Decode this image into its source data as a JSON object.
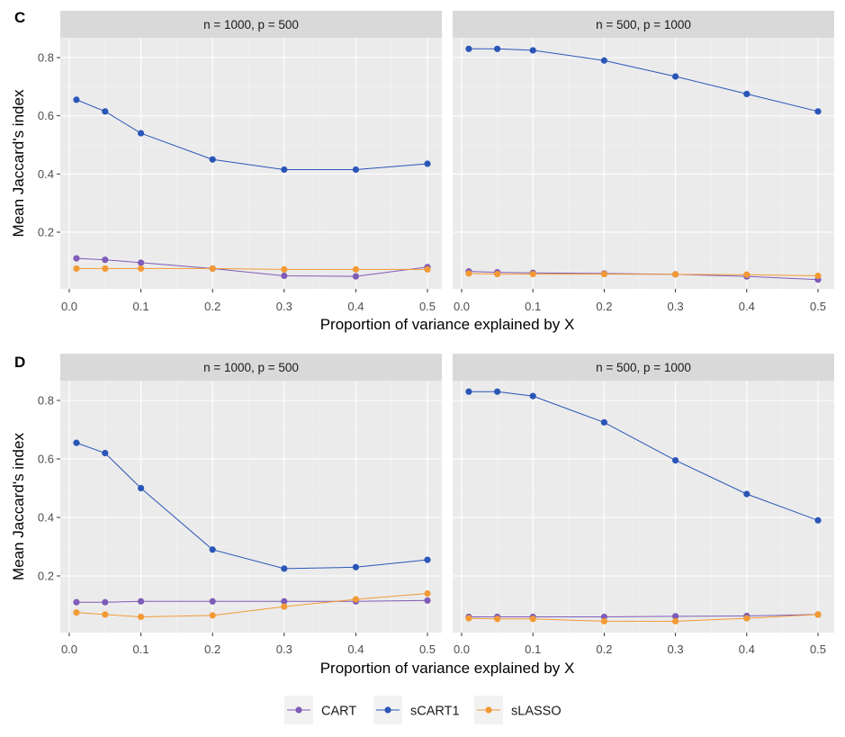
{
  "colors": {
    "CART": "#7e5cb8",
    "sCART1": "#2a56b8",
    "sLASSO": "#f39a35",
    "panel_bg": "#ebebeb",
    "strip_bg": "#d9d9d9",
    "grid_major": "#ffffff",
    "grid_minor": "#f4f4f4"
  },
  "legend": {
    "items": [
      "CART",
      "sCART1",
      "sLASSO"
    ]
  },
  "chart_data": [
    {
      "type": "line",
      "tag": "C",
      "ylabel": "Mean Jaccard's index",
      "xlabel": "Proportion of variance explained by X",
      "xlim": [
        0,
        0.5
      ],
      "ylim": [
        0,
        0.85
      ],
      "x_ticks": [
        "0.0",
        "0.1",
        "0.2",
        "0.3",
        "0.4",
        "0.5"
      ],
      "y_ticks": [
        "0.2",
        "0.4",
        "0.6",
        "0.8"
      ],
      "facets": [
        {
          "strip": "n = 1000, p = 500",
          "x": [
            0.01,
            0.05,
            0.1,
            0.2,
            0.3,
            0.4,
            0.5
          ],
          "series": [
            {
              "name": "CART",
              "values": [
                0.11,
                0.105,
                0.095,
                0.075,
                0.05,
                0.048,
                0.08
              ]
            },
            {
              "name": "sCART1",
              "values": [
                0.655,
                0.615,
                0.54,
                0.45,
                0.415,
                0.415,
                0.435
              ]
            },
            {
              "name": "sLASSO",
              "values": [
                0.075,
                0.075,
                0.075,
                0.075,
                0.072,
                0.072,
                0.072
              ]
            }
          ]
        },
        {
          "strip": "n = 500, p = 1000",
          "x": [
            0.01,
            0.05,
            0.1,
            0.2,
            0.3,
            0.4,
            0.5
          ],
          "series": [
            {
              "name": "CART",
              "values": [
                0.065,
                0.062,
                0.06,
                0.058,
                0.055,
                0.048,
                0.037
              ]
            },
            {
              "name": "sCART1",
              "values": [
                0.83,
                0.83,
                0.825,
                0.79,
                0.735,
                0.675,
                0.615
              ]
            },
            {
              "name": "sLASSO",
              "values": [
                0.058,
                0.056,
                0.056,
                0.056,
                0.055,
                0.054,
                0.05
              ]
            }
          ]
        }
      ]
    },
    {
      "type": "line",
      "tag": "D",
      "ylabel": "Mean Jaccard's index",
      "xlabel": "Proportion of variance explained by X",
      "xlim": [
        0,
        0.5
      ],
      "ylim": [
        0,
        0.85
      ],
      "x_ticks": [
        "0.0",
        "0.1",
        "0.2",
        "0.3",
        "0.4",
        "0.5"
      ],
      "y_ticks": [
        "0.2",
        "0.4",
        "0.6",
        "0.8"
      ],
      "facets": [
        {
          "strip": "n = 1000, p = 500",
          "x": [
            0.01,
            0.05,
            0.1,
            0.2,
            0.3,
            0.4,
            0.5
          ],
          "series": [
            {
              "name": "CART",
              "values": [
                0.11,
                0.11,
                0.113,
                0.113,
                0.113,
                0.113,
                0.116
              ]
            },
            {
              "name": "sCART1",
              "values": [
                0.655,
                0.62,
                0.5,
                0.29,
                0.225,
                0.23,
                0.255
              ]
            },
            {
              "name": "sLASSO",
              "values": [
                0.075,
                0.068,
                0.06,
                0.065,
                0.095,
                0.12,
                0.14
              ]
            }
          ]
        },
        {
          "strip": "n = 500, p = 1000",
          "x": [
            0.01,
            0.05,
            0.1,
            0.2,
            0.3,
            0.4,
            0.5
          ],
          "series": [
            {
              "name": "CART",
              "values": [
                0.06,
                0.06,
                0.06,
                0.06,
                0.062,
                0.063,
                0.068
              ]
            },
            {
              "name": "sCART1",
              "values": [
                0.83,
                0.83,
                0.815,
                0.725,
                0.595,
                0.48,
                0.39
              ]
            },
            {
              "name": "sLASSO",
              "values": [
                0.055,
                0.053,
                0.053,
                0.045,
                0.045,
                0.055,
                0.068
              ]
            }
          ]
        }
      ]
    }
  ]
}
